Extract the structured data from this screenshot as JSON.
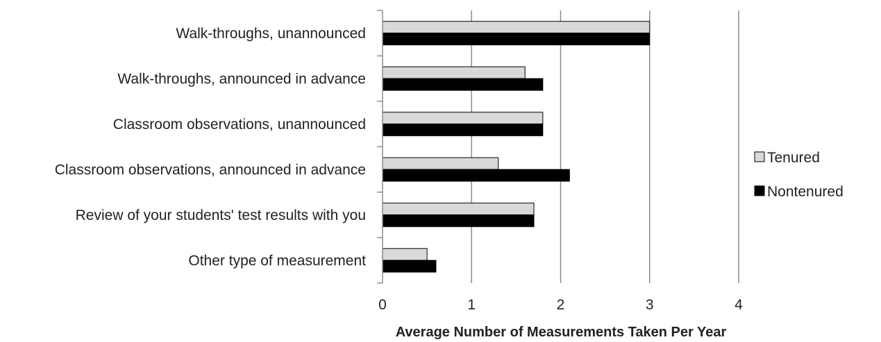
{
  "chart_data": {
    "type": "bar",
    "orientation": "horizontal",
    "categories": [
      "Walk-throughs, unannounced",
      "Walk-throughs, announced in advance",
      "Classroom observations, unannounced",
      "Classroom observations, announced in advance",
      "Review of your students' test results with you",
      "Other type of measurement"
    ],
    "series": [
      {
        "name": "Tenured",
        "color": "#d9d9d9",
        "values": [
          3.0,
          1.6,
          1.8,
          1.3,
          1.7,
          0.5
        ]
      },
      {
        "name": "Nontenured",
        "color": "#000000",
        "values": [
          3.0,
          1.8,
          1.8,
          2.1,
          1.7,
          0.6
        ]
      }
    ],
    "xlabel": "Average Number of Measurements Taken Per Year",
    "ylabel": "",
    "xlim": [
      0,
      4
    ],
    "xticks": [
      "0",
      "1",
      "2",
      "3",
      "4"
    ],
    "grid": true,
    "legend_position": "right"
  }
}
